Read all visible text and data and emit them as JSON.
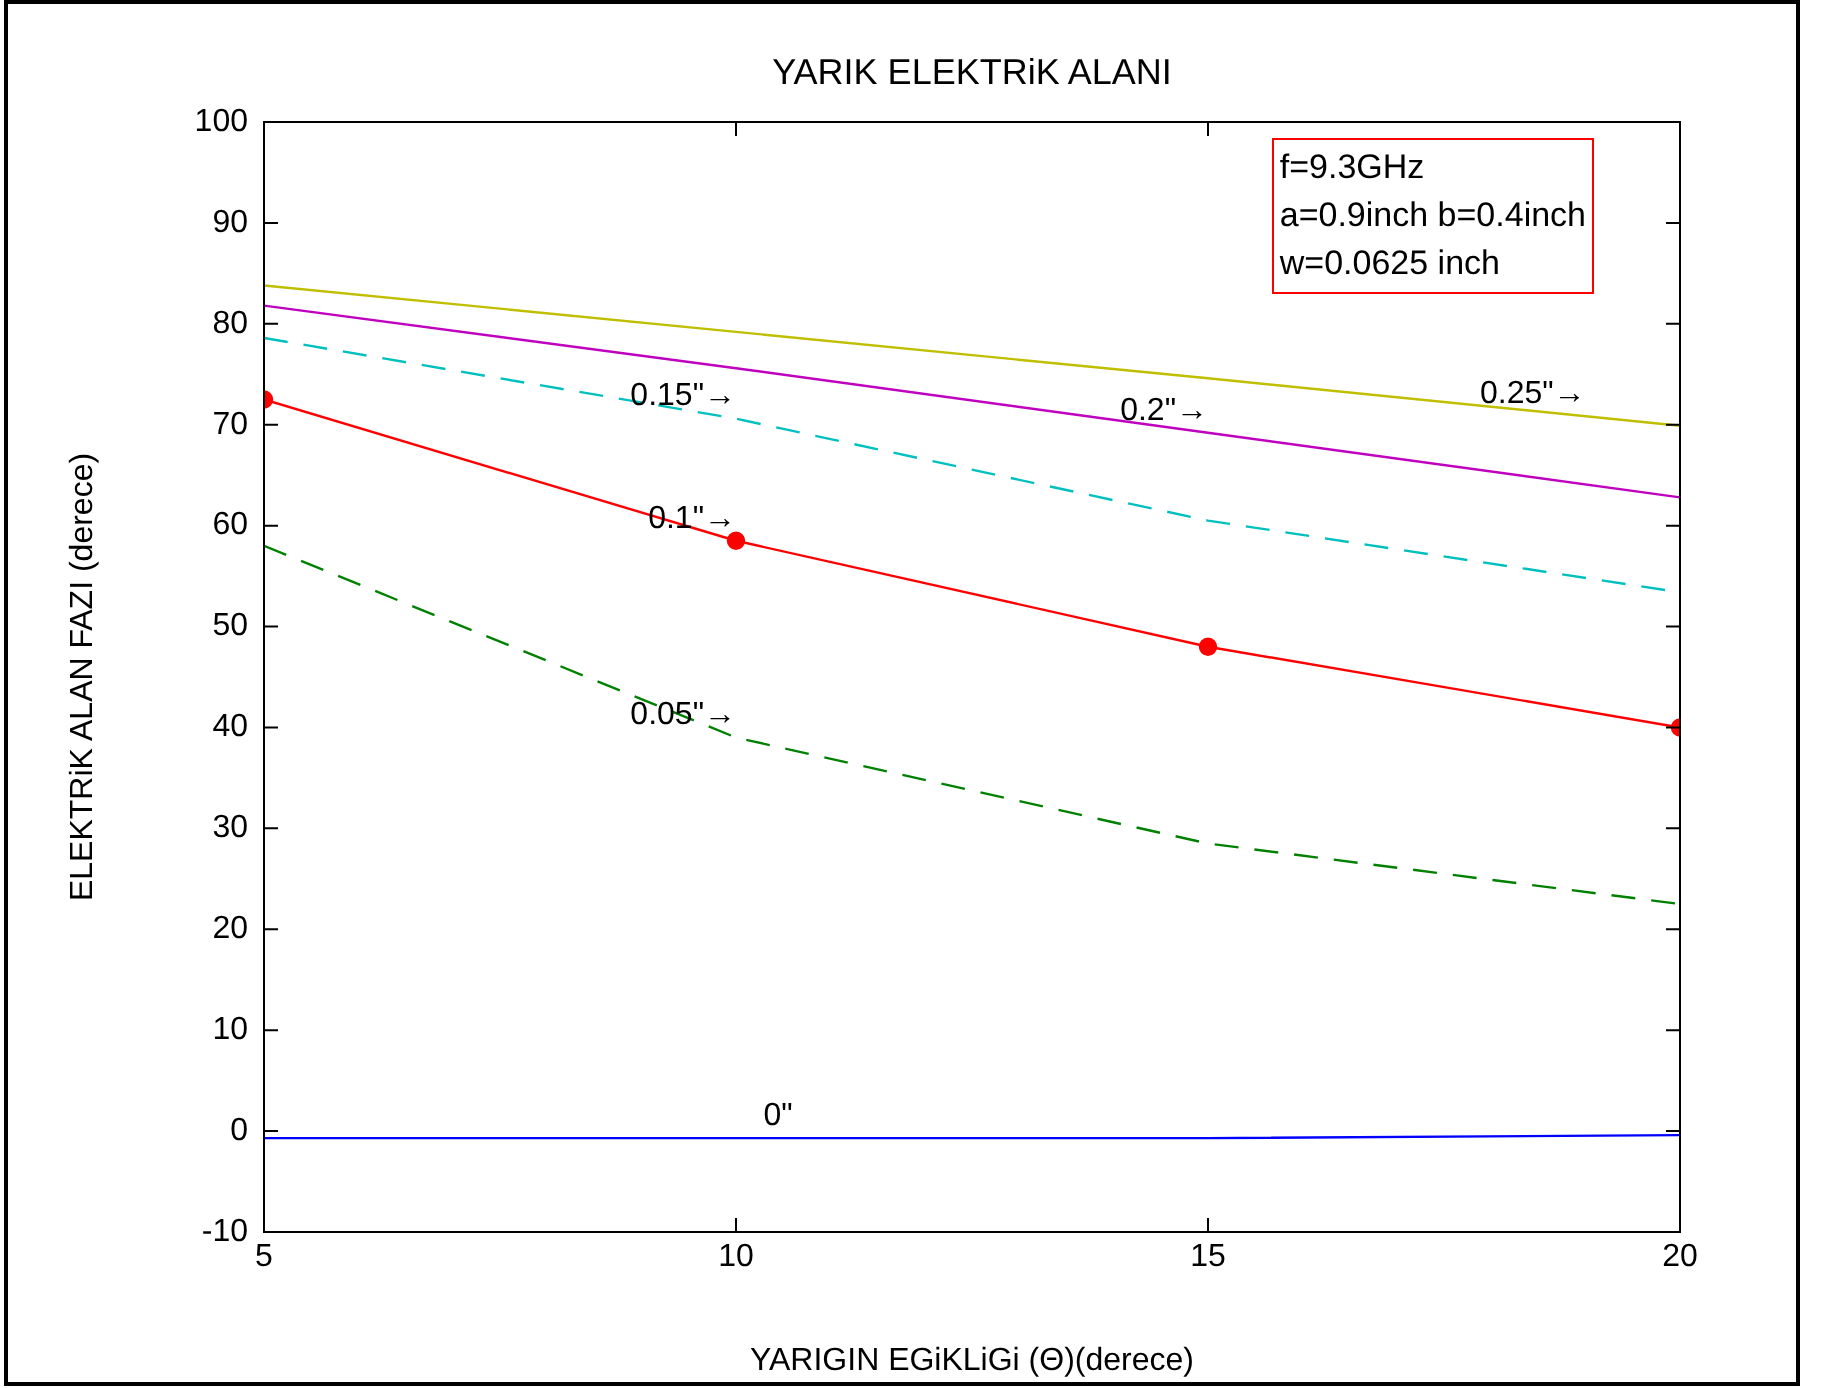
{
  "chart_data": {
    "type": "line",
    "title": "YARIK ELEKTRiK ALANI",
    "xlabel": "YARIGIN EGiKLiGi (Θ)(derece)",
    "ylabel": "ELEKTRiK ALAN FAZI (derece)",
    "x": [
      5,
      10,
      15,
      20
    ],
    "series": [
      {
        "color": "#bfbf00",
        "values": [
          83.8,
          79.2,
          74.6,
          69.9
        ],
        "line_style": "solid",
        "marker": "none"
      },
      {
        "color": "#bf00bf",
        "values": [
          81.8,
          75.6,
          69.2,
          62.8
        ],
        "line_style": "solid",
        "marker": "none"
      },
      {
        "color": "#00bfbf",
        "values": [
          78.6,
          70.6,
          60.5,
          53.4
        ],
        "line_style": "dashed",
        "marker": "none"
      },
      {
        "color": "#ff0000",
        "values": [
          72.5,
          58.5,
          48,
          40
        ],
        "line_style": "solid",
        "marker": "circle"
      },
      {
        "color": "#008000",
        "values": [
          58,
          39,
          28.5,
          22.5
        ],
        "line_style": "dashed",
        "marker": "none"
      },
      {
        "color": "#0000ff",
        "values": [
          -0.7,
          -0.7,
          -0.7,
          -0.4
        ],
        "line_style": "solid",
        "marker": "none"
      }
    ],
    "xlim": [
      5,
      20
    ],
    "xticks": [
      5,
      10,
      15,
      20
    ],
    "ylim": [
      -10,
      100
    ],
    "yticks": [
      -10,
      0,
      10,
      20,
      30,
      40,
      50,
      60,
      70,
      80,
      90,
      100
    ],
    "grid": false,
    "legend": false,
    "annotations": [
      {
        "text": "0.25\"→",
        "x": 19,
        "y": 70.8
      },
      {
        "text": "0.2\"→",
        "x": 15,
        "y": 69.2
      },
      {
        "text": "0.15\"→",
        "x": 10,
        "y": 70.6
      },
      {
        "text": "0.1\"→",
        "x": 10,
        "y": 58.5
      },
      {
        "text": "0.05\"→",
        "x": 10,
        "y": 39
      },
      {
        "text": "0\"",
        "x": 10.6,
        "y": -0.7
      },
      "f=9.3GHz",
      "a=0.9inch b=0.4inch",
      "w=0.0625 inch"
    ]
  }
}
